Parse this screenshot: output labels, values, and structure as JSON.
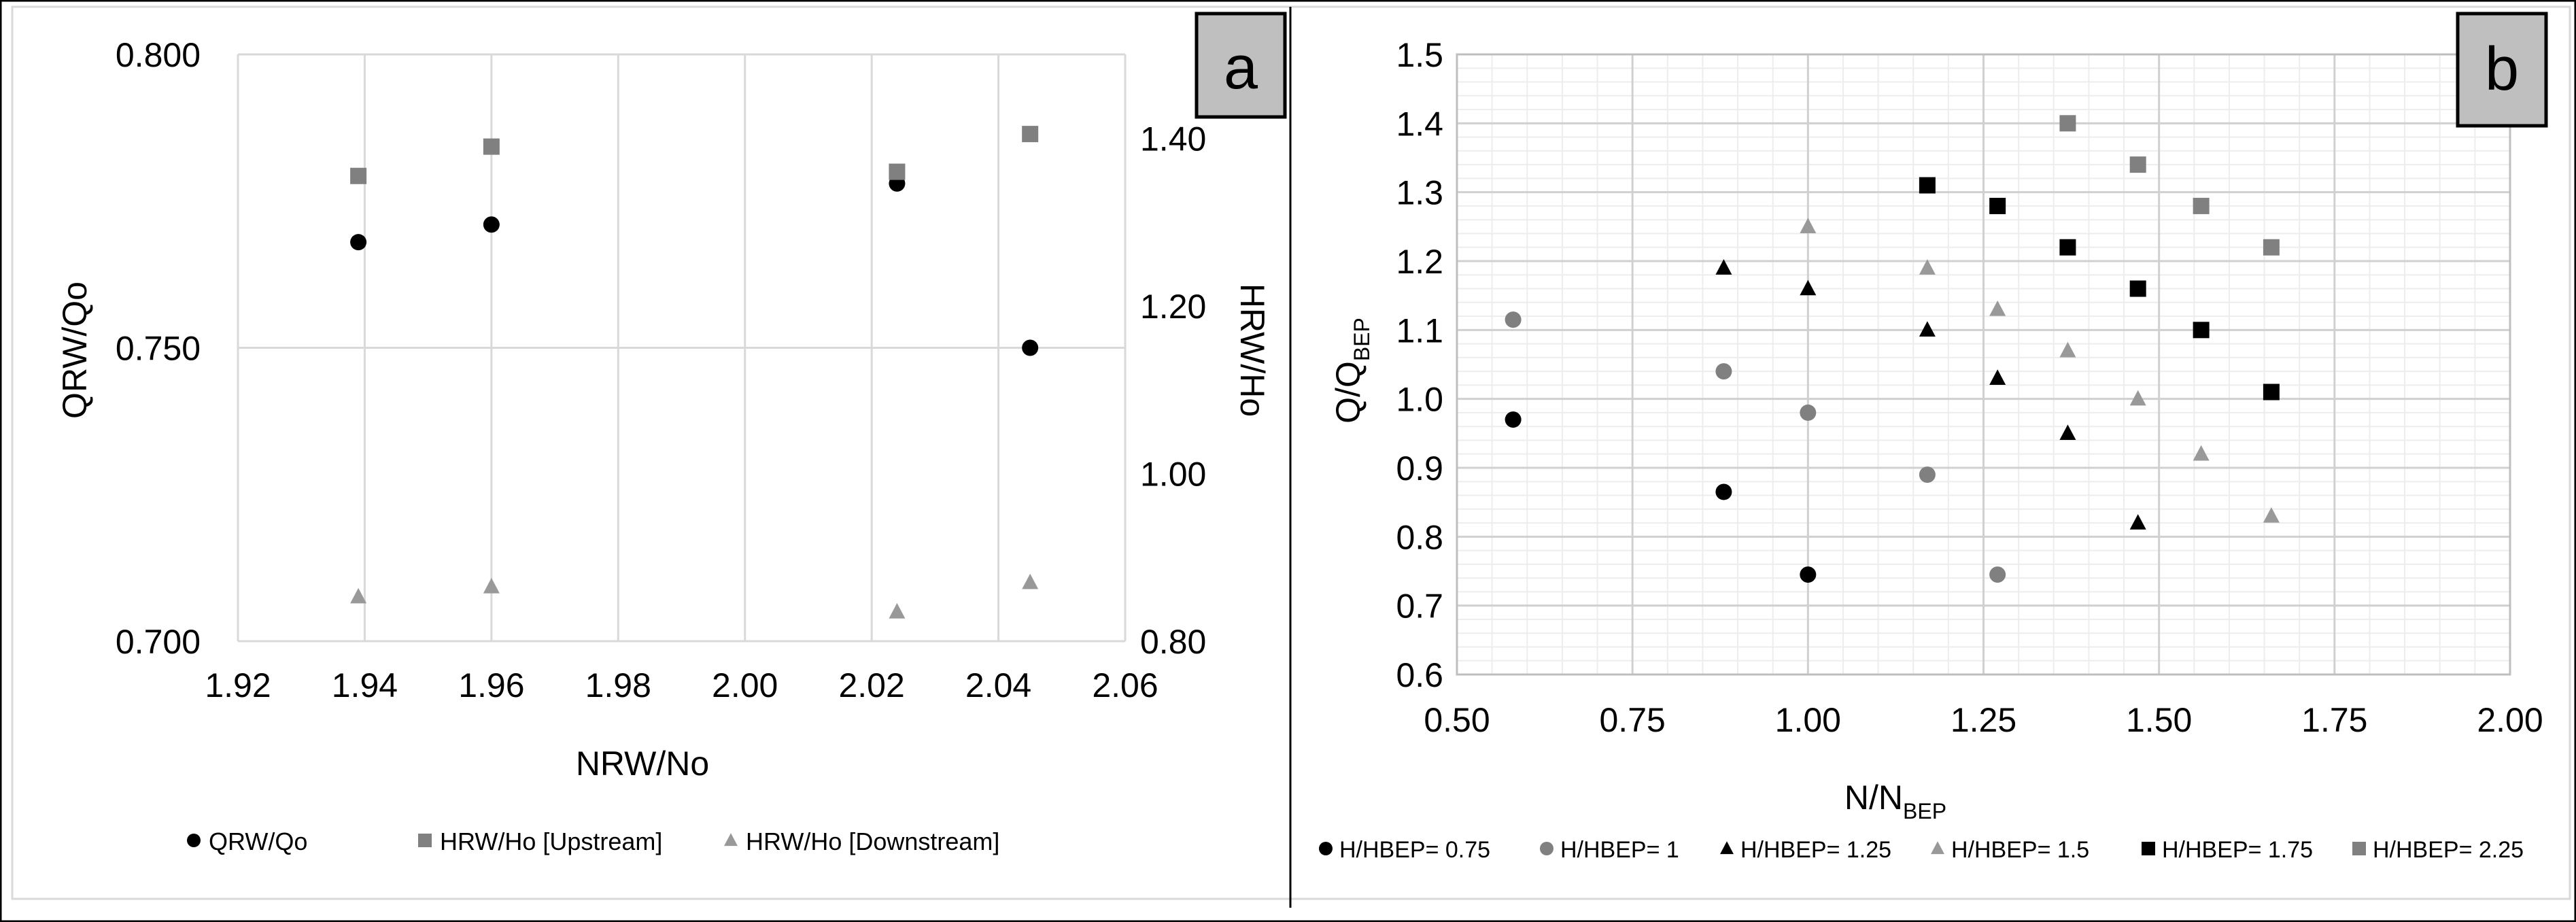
{
  "chart_data": [
    {
      "type": "scatter",
      "panel_label": "a",
      "title": "",
      "xlabel": "NRW/No",
      "ylabel": "QRW/Qo",
      "y2label": "HRW/Ho",
      "xlim": [
        1.92,
        2.06
      ],
      "xticks": [
        "1.92",
        "1.94",
        "1.96",
        "1.98",
        "2.00",
        "2.02",
        "2.04",
        "2.06"
      ],
      "ylim": [
        0.7,
        0.8
      ],
      "yticks": [
        "0.700",
        "0.750",
        "0.800"
      ],
      "y2lim": [
        0.8,
        1.5
      ],
      "y2ticks": [
        "0.80",
        "1.00",
        "1.20",
        "1.40"
      ],
      "x_gridlines": [
        1.92,
        1.94,
        1.96,
        1.98,
        2.0,
        2.02,
        2.04,
        2.06
      ],
      "y_gridlines": [
        0.7,
        0.75,
        0.8
      ],
      "series": [
        {
          "name": "QRW/Qo",
          "axis": "left",
          "marker": "circle",
          "color": "#000000",
          "x": [
            1.939,
            1.96,
            2.024,
            2.045
          ],
          "y": [
            0.768,
            0.771,
            0.778,
            0.75
          ]
        },
        {
          "name": "HRW/Ho [Upstream]",
          "axis": "right",
          "marker": "square",
          "color": "#808080",
          "x": [
            1.939,
            1.96,
            2.024,
            2.045
          ],
          "y": [
            1.355,
            1.39,
            1.36,
            1.405
          ]
        },
        {
          "name": "HRW/Ho [Downstream]",
          "axis": "right",
          "marker": "triangle",
          "color": "#999999",
          "x": [
            1.939,
            1.96,
            2.024,
            2.045
          ],
          "y": [
            0.853,
            0.865,
            0.835,
            0.87
          ]
        }
      ]
    },
    {
      "type": "scatter",
      "panel_label": "b",
      "title": "",
      "xlabel": "N/N",
      "xlabel_sub": "BEP",
      "ylabel": "Q/Q",
      "ylabel_sub": "BEP",
      "xlim": [
        0.5,
        2.0
      ],
      "xticks": [
        "0.50",
        "0.75",
        "1.00",
        "1.25",
        "1.50",
        "1.75",
        "2.00"
      ],
      "ylim": [
        0.6,
        1.5
      ],
      "yticks": [
        "0.6",
        "0.7",
        "0.8",
        "0.9",
        "1.0",
        "1.1",
        "1.2",
        "1.3",
        "1.4",
        "1.5"
      ],
      "minor_x_step": 0.05,
      "minor_y_step": 0.02,
      "series": [
        {
          "name": "H/HBEP= 0.75",
          "marker": "circle",
          "color": "#000000",
          "x": [
            0.58,
            0.88,
            1.0
          ],
          "y": [
            0.97,
            0.865,
            0.745
          ]
        },
        {
          "name": "H/HBEP= 1",
          "marker": "circle",
          "color": "#808080",
          "x": [
            0.58,
            0.88,
            1.0,
            1.17,
            1.27
          ],
          "y": [
            1.115,
            1.04,
            0.98,
            0.89,
            0.745
          ]
        },
        {
          "name": "H/HBEP= 1.25",
          "marker": "triangle",
          "color": "#000000",
          "x": [
            0.88,
            1.0,
            1.17,
            1.27,
            1.37,
            1.47
          ],
          "y": [
            1.19,
            1.16,
            1.1,
            1.03,
            0.95,
            0.82
          ]
        },
        {
          "name": "H/HBEP= 1.5",
          "marker": "triangle",
          "color": "#999999",
          "x": [
            1.0,
            1.17,
            1.27,
            1.37,
            1.47,
            1.56,
            1.66
          ],
          "y": [
            1.25,
            1.19,
            1.13,
            1.07,
            1.0,
            0.92,
            0.83
          ]
        },
        {
          "name": "H/HBEP= 1.75",
          "marker": "square",
          "color": "#000000",
          "x": [
            1.17,
            1.27,
            1.37,
            1.47,
            1.56,
            1.66
          ],
          "y": [
            1.31,
            1.28,
            1.22,
            1.16,
            1.1,
            1.01
          ]
        },
        {
          "name": "H/HBEP= 2.25",
          "marker": "square",
          "color": "#808080",
          "x": [
            1.37,
            1.47,
            1.56,
            1.66
          ],
          "y": [
            1.4,
            1.34,
            1.28,
            1.22
          ]
        }
      ]
    }
  ]
}
